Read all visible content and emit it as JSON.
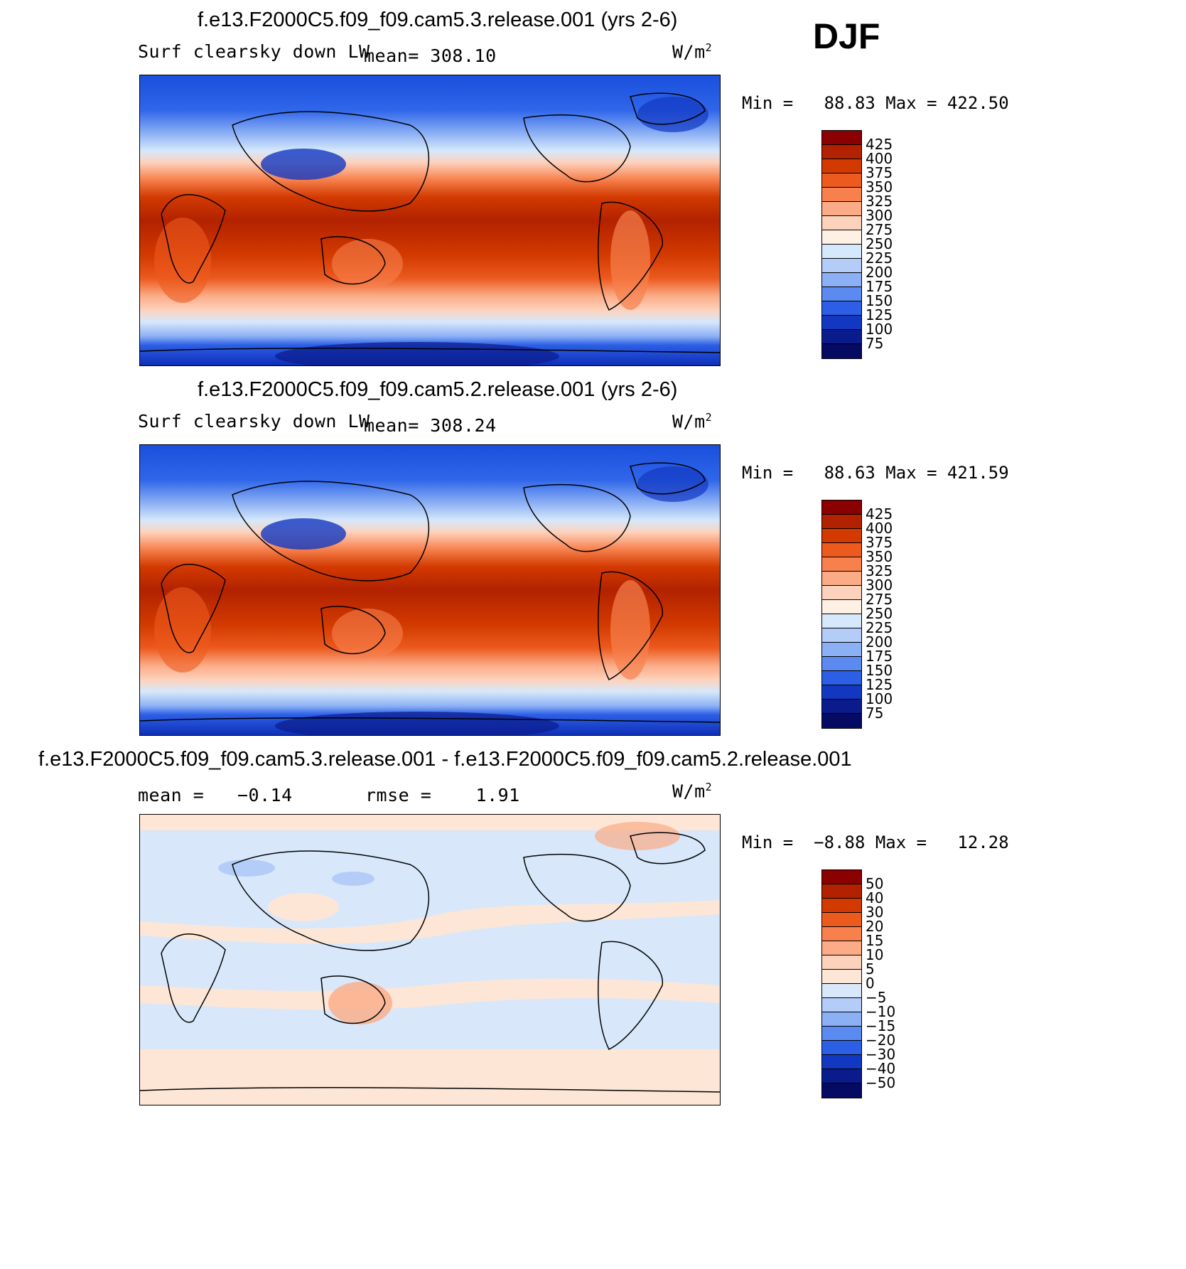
{
  "season": "DJF",
  "units_prefix": "W/m",
  "units_sup": "2",
  "panels": [
    {
      "title": "f.e13.F2000C5.f09_f09.cam5.3.release.001 (yrs 2-6)",
      "variable": "Surf clearsky down LW",
      "stat_text": "mean= 308.10",
      "min_text": "Min =   88.83 Max = 422.50",
      "kind": "field",
      "colorbar_labels": [
        "425",
        "400",
        "375",
        "350",
        "325",
        "300",
        "275",
        "250",
        "225",
        "200",
        "175",
        "150",
        "125",
        "100",
        "75"
      ]
    },
    {
      "title": "f.e13.F2000C5.f09_f09.cam5.2.release.001 (yrs 2-6)",
      "variable": "Surf clearsky down LW",
      "stat_text": "mean= 308.24",
      "min_text": "Min =   88.63 Max = 421.59",
      "kind": "field",
      "colorbar_labels": [
        "425",
        "400",
        "375",
        "350",
        "325",
        "300",
        "275",
        "250",
        "225",
        "200",
        "175",
        "150",
        "125",
        "100",
        "75"
      ]
    },
    {
      "title": "f.e13.F2000C5.f09_f09.cam5.3.release.001 - f.e13.F2000C5.f09_f09.cam5.2.release.001",
      "mean_text": "mean =   −0.14",
      "rmse_text": "rmse =    1.91",
      "min_text": "Min =  −8.88 Max =   12.28",
      "kind": "diff",
      "colorbar_labels": [
        "50",
        "40",
        "30",
        "20",
        "15",
        "10",
        "5",
        "0",
        "−5",
        "−10",
        "−15",
        "−20",
        "−30",
        "−40",
        "−50"
      ]
    }
  ],
  "colors": {
    "field_scale": [
      "#8b0000",
      "#b22200",
      "#d23a00",
      "#ec5a1e",
      "#f7804d",
      "#fbab86",
      "#fdd2bd",
      "#fef0e3",
      "#d6e8fb",
      "#b4cdf8",
      "#8cb0f5",
      "#5b8af0",
      "#2c5fe6",
      "#1238c2",
      "#0a1b8c",
      "#050a63"
    ],
    "diff_scale": [
      "#8b0000",
      "#b22200",
      "#d23a00",
      "#ec5a1e",
      "#f7804d",
      "#fbab86",
      "#fdd2bd",
      "#fde6d6",
      "#d8e8fa",
      "#b4cdf8",
      "#8cb0f5",
      "#5b8af0",
      "#2c5fe6",
      "#1238c2",
      "#0a1b8c",
      "#050a63"
    ]
  }
}
